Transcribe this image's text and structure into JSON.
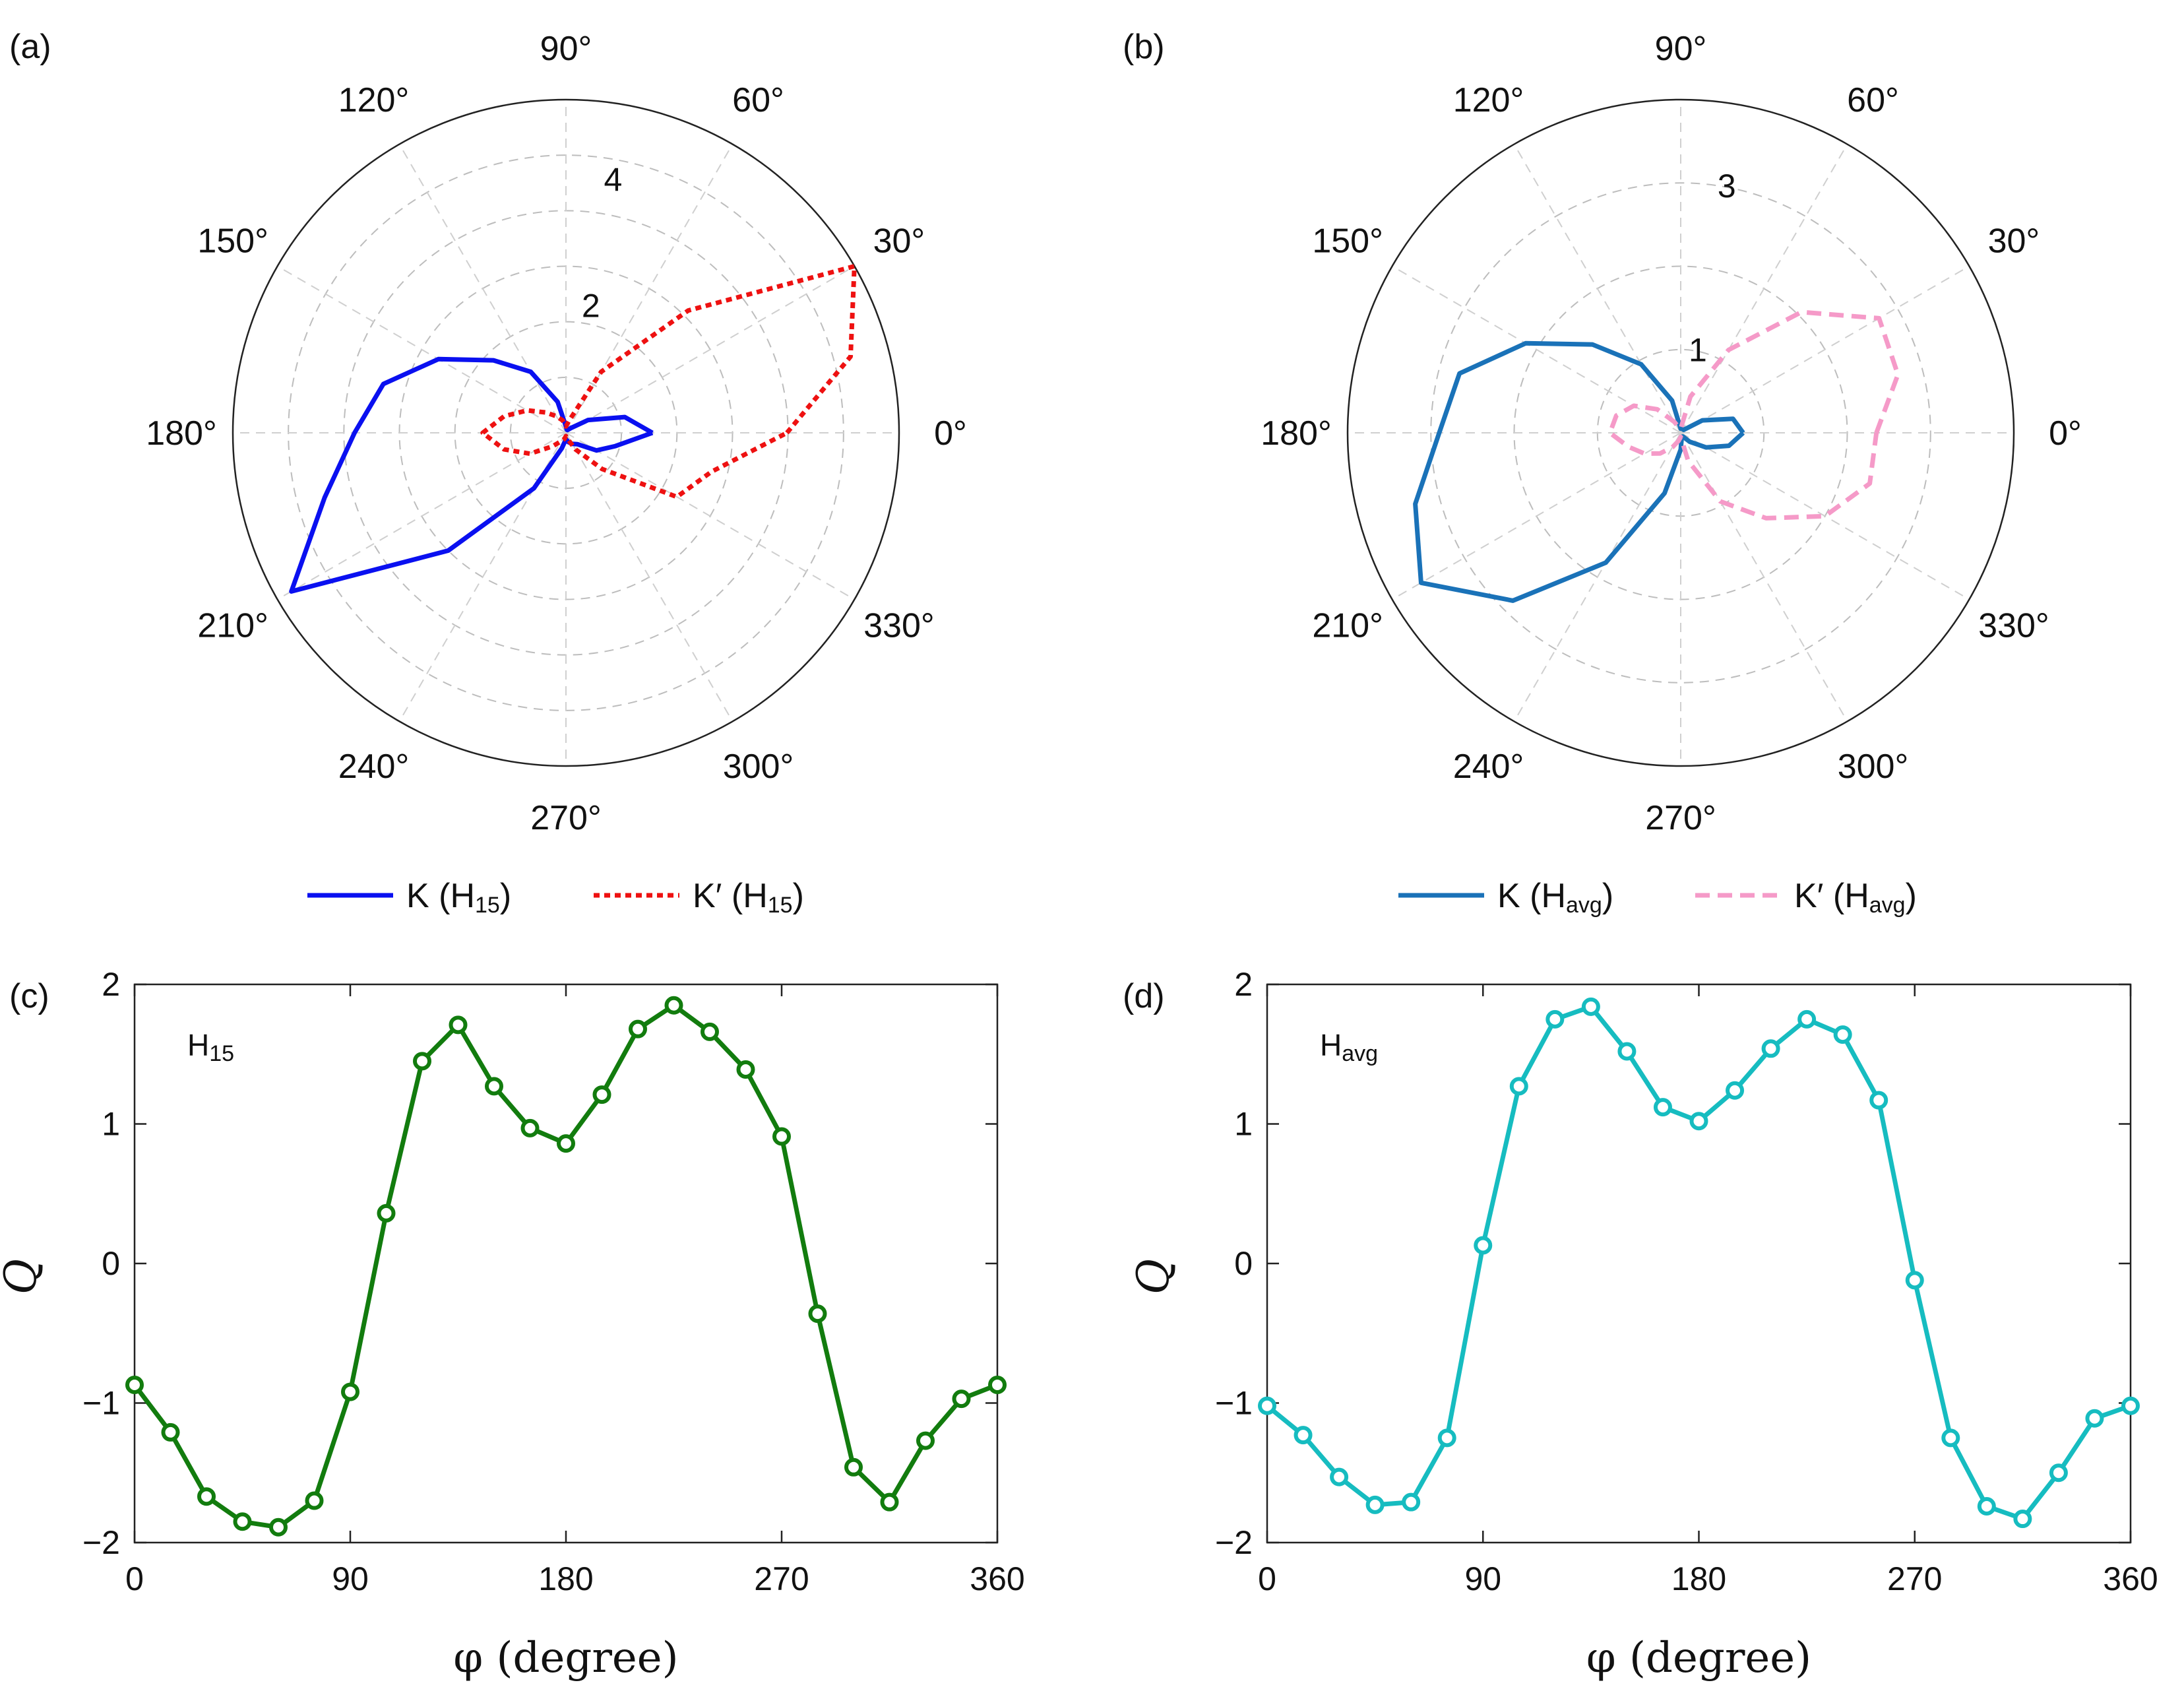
{
  "figure": {
    "panels": [
      {
        "label": "(a)",
        "legend": [
          {
            "main": "K (H",
            "sub": "15",
            "close": ")"
          },
          {
            "main": "K′ (H",
            "sub": "15",
            "close": ")"
          }
        ],
        "annotation": null
      },
      {
        "label": "(b)",
        "legend": [
          {
            "main": "K (H",
            "sub": "avg",
            "close": ")"
          },
          {
            "main": "K′ (H",
            "sub": "avg",
            "close": ")"
          }
        ],
        "annotation": null
      },
      {
        "label": "(c)",
        "legend": null,
        "annotation": {
          "main": "H",
          "sub": "15"
        }
      },
      {
        "label": "(d)",
        "legend": null,
        "annotation": {
          "main": "H",
          "sub": "avg"
        }
      }
    ]
  },
  "chart_data": [
    {
      "panel": "(a)",
      "type": "polar-line",
      "theta_unit": "degree",
      "theta_ticks": [
        "0°",
        "30°",
        "60°",
        "90°",
        "120°",
        "150°",
        "180°",
        "210°",
        "240°",
        "270°",
        "300°",
        "330°"
      ],
      "r_ticks": [
        "2",
        "4"
      ],
      "r_tick_values": [
        2,
        4
      ],
      "rlim": [
        0,
        5.2
      ],
      "grid": true,
      "legend_position": "bottom",
      "series": [
        {
          "name": "K (H15)",
          "color": "#0a10f0",
          "style": "solid",
          "theta": [
            0,
            15,
            30,
            45,
            60,
            75,
            90,
            105,
            120,
            135,
            150,
            165,
            180,
            195,
            210,
            225,
            240,
            255,
            270,
            285,
            300,
            315,
            330,
            345,
            360
          ],
          "r": [
            1.35,
            0.95,
            0.4,
            0.1,
            0.05,
            0.05,
            0.1,
            0.5,
            1.1,
            1.6,
            2.3,
            2.95,
            3.3,
            3.9,
            4.95,
            2.6,
            1.0,
            0.25,
            0.1,
            0.15,
            0.2,
            0.25,
            0.55,
            0.8,
            1.35
          ]
        },
        {
          "name": "K′ (H15)",
          "color": "#ee1111",
          "style": "dotted",
          "theta": [
            0,
            15,
            30,
            45,
            60,
            75,
            90,
            105,
            120,
            135,
            150,
            165,
            180,
            195,
            210,
            225,
            240,
            255,
            270,
            285,
            300,
            315,
            330,
            345,
            360
          ],
          "r": [
            3.45,
            4.6,
            5.2,
            2.7,
            1.1,
            0.2,
            0.1,
            0.2,
            0.3,
            0.45,
            0.7,
            1.0,
            1.3,
            1.0,
            0.65,
            0.3,
            0.15,
            0.1,
            0.05,
            0.1,
            0.3,
            0.8,
            2.0,
            2.35,
            3.45
          ]
        }
      ]
    },
    {
      "panel": "(b)",
      "type": "polar-line",
      "theta_unit": "degree",
      "theta_ticks": [
        "0°",
        "30°",
        "60°",
        "90°",
        "120°",
        "150°",
        "180°",
        "210°",
        "240°",
        "270°",
        "300°",
        "330°"
      ],
      "r_ticks": [
        "1",
        "3"
      ],
      "r_tick_values": [
        1,
        3
      ],
      "rlim": [
        0,
        4
      ],
      "grid": true,
      "legend_position": "bottom",
      "series": [
        {
          "name": "K (Havg)",
          "color": "#1a72b8",
          "style": "solid",
          "theta": [
            0,
            15,
            30,
            45,
            60,
            75,
            90,
            105,
            120,
            135,
            150,
            165,
            180,
            195,
            210,
            225,
            240,
            255,
            270,
            285,
            300,
            315,
            330,
            345,
            360
          ],
          "r": [
            0.75,
            0.65,
            0.3,
            0.05,
            0.05,
            0.05,
            0.05,
            0.4,
            0.95,
            1.5,
            2.15,
            2.75,
            2.9,
            3.3,
            3.6,
            2.85,
            1.8,
            0.75,
            0.2,
            0.05,
            0.05,
            0.15,
            0.35,
            0.6,
            0.75
          ]
        },
        {
          "name": "K′ (Havg)",
          "color": "#f59ac8",
          "style": "dashed",
          "theta": [
            0,
            15,
            30,
            45,
            60,
            75,
            90,
            105,
            120,
            135,
            150,
            165,
            180,
            195,
            210,
            225,
            240,
            255,
            270,
            285,
            300,
            315,
            330,
            345,
            360
          ],
          "r": [
            2.35,
            2.7,
            2.75,
            2.05,
            1.15,
            0.45,
            0.05,
            0.05,
            0.15,
            0.4,
            0.65,
            0.8,
            0.85,
            0.65,
            0.5,
            0.35,
            0.2,
            0.1,
            0.05,
            0.35,
            0.95,
            1.45,
            2.0,
            2.35,
            2.35
          ]
        }
      ]
    },
    {
      "panel": "(c)",
      "type": "line",
      "title": "",
      "xlabel": "φ (degree)",
      "ylabel": "Q",
      "xlim": [
        0,
        360
      ],
      "ylim": [
        -2,
        2
      ],
      "x_ticks": [
        0,
        90,
        180,
        270,
        360
      ],
      "y_ticks": [
        -2,
        -1,
        0,
        1,
        2
      ],
      "y_tick_labels": [
        "−2",
        "−1",
        "0",
        "1",
        "2"
      ],
      "grid": false,
      "series": [
        {
          "name": "H15",
          "color": "#127c0e",
          "marker": "open-circle",
          "x": [
            0,
            15,
            30,
            45,
            60,
            75,
            90,
            105,
            120,
            135,
            150,
            165,
            180,
            195,
            210,
            225,
            240,
            255,
            270,
            285,
            300,
            315,
            330,
            345,
            360
          ],
          "y": [
            -0.87,
            -1.21,
            -1.67,
            -1.85,
            -1.89,
            -1.7,
            -0.92,
            0.36,
            1.45,
            1.71,
            1.27,
            0.97,
            0.86,
            1.21,
            1.68,
            1.85,
            1.66,
            1.39,
            0.91,
            -0.36,
            -1.46,
            -1.71,
            -1.27,
            -0.97,
            -0.87
          ]
        }
      ]
    },
    {
      "panel": "(d)",
      "type": "line",
      "title": "",
      "xlabel": "φ (degree)",
      "ylabel": "Q",
      "xlim": [
        0,
        360
      ],
      "ylim": [
        -2,
        2
      ],
      "x_ticks": [
        0,
        90,
        180,
        270,
        360
      ],
      "y_ticks": [
        -2,
        -1,
        0,
        1,
        2
      ],
      "y_tick_labels": [
        "−2",
        "−1",
        "0",
        "1",
        "2"
      ],
      "grid": false,
      "series": [
        {
          "name": "Havg",
          "color": "#16bcc0",
          "marker": "open-circle",
          "x": [
            0,
            15,
            30,
            45,
            60,
            75,
            90,
            105,
            120,
            135,
            150,
            165,
            180,
            195,
            210,
            225,
            240,
            255,
            270,
            285,
            300,
            315,
            330,
            345,
            360
          ],
          "y": [
            -1.02,
            -1.23,
            -1.53,
            -1.73,
            -1.71,
            -1.25,
            0.13,
            1.27,
            1.75,
            1.84,
            1.52,
            1.12,
            1.02,
            1.24,
            1.54,
            1.75,
            1.64,
            1.17,
            -0.12,
            -1.25,
            -1.74,
            -1.83,
            -1.5,
            -1.11,
            -1.02
          ]
        }
      ]
    }
  ]
}
